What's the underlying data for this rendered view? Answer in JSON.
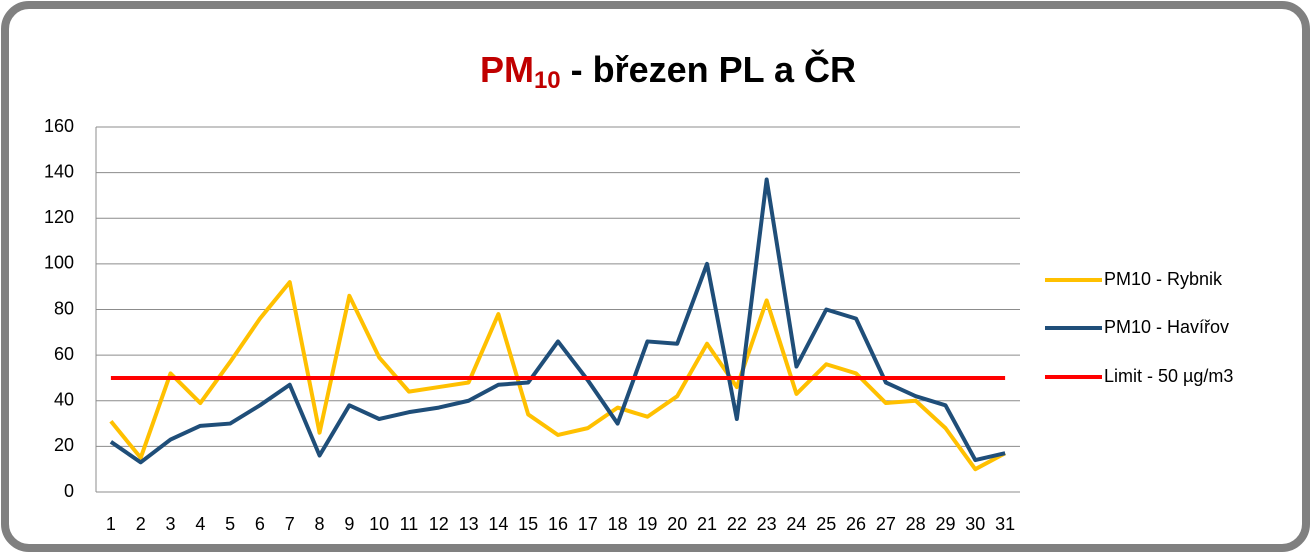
{
  "chart_data": {
    "type": "line",
    "title": [
      "PM",
      "10",
      " - březen PL a ČR"
    ],
    "categories": [
      "1",
      "2",
      "3",
      "4",
      "5",
      "6",
      "7",
      "8",
      "9",
      "10",
      "11",
      "12",
      "13",
      "14",
      "15",
      "16",
      "17",
      "18",
      "19",
      "20",
      "21",
      "22",
      "23",
      "24",
      "25",
      "26",
      "27",
      "28",
      "29",
      "30",
      "31"
    ],
    "series": [
      {
        "name": "PM10 - Rybnik",
        "color": "#ffc000",
        "values": [
          31,
          15,
          52,
          39,
          57,
          76,
          92,
          26,
          86,
          59,
          44,
          46,
          48,
          78,
          34,
          25,
          28,
          37,
          33,
          42,
          65,
          46,
          84,
          43,
          56,
          52,
          39,
          40,
          28,
          10,
          17
        ]
      },
      {
        "name": "PM10 - Havířov",
        "color": "#1f4e79",
        "values": [
          22,
          13,
          23,
          29,
          30,
          38,
          47,
          16,
          38,
          32,
          35,
          37,
          40,
          47,
          48,
          66,
          49,
          30,
          66,
          65,
          100,
          32,
          137,
          55,
          80,
          76,
          48,
          42,
          38,
          14,
          17
        ]
      },
      {
        "name": "Limit - 50 µg/m3",
        "color": "#ff0000",
        "values": [
          50,
          50,
          50,
          50,
          50,
          50,
          50,
          50,
          50,
          50,
          50,
          50,
          50,
          50,
          50,
          50,
          50,
          50,
          50,
          50,
          50,
          50,
          50,
          50,
          50,
          50,
          50,
          50,
          50,
          50,
          50
        ]
      }
    ],
    "ylim": [
      0,
      160
    ],
    "yticks": [
      0,
      20,
      40,
      60,
      80,
      100,
      120,
      140,
      160
    ],
    "grid": true,
    "legend": "right"
  }
}
